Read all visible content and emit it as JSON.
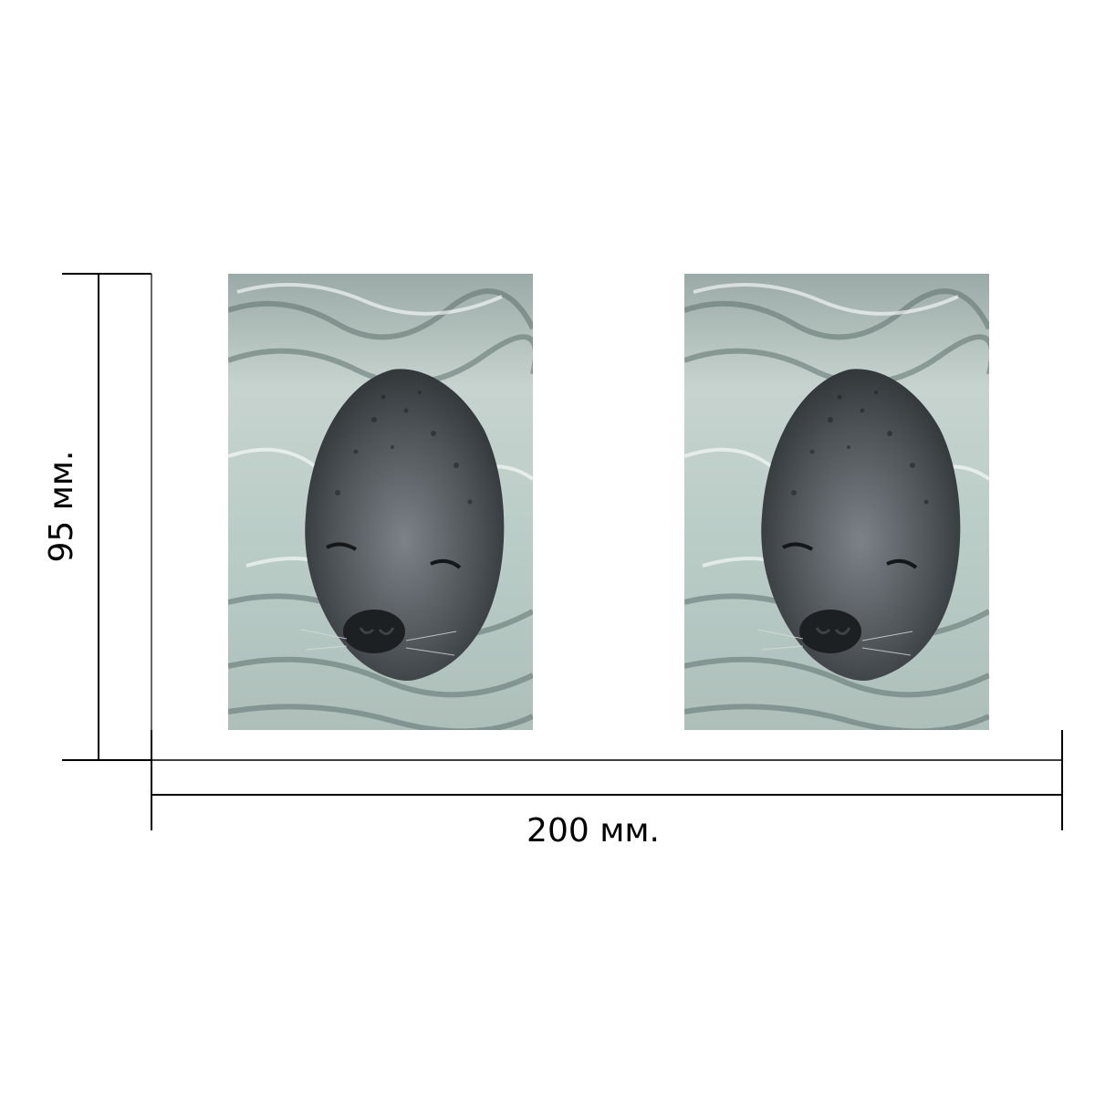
{
  "dimensions": {
    "width_label": "200 мм.",
    "height_label": "95 мм."
  },
  "colors": {
    "line": "#000000",
    "water_light": "#c9d8d4",
    "water_dark": "#6e857f",
    "seal_dark": "#2f3336",
    "seal_mid": "#6b7176"
  },
  "photos": [
    {
      "subject": "seal-head-in-water"
    },
    {
      "subject": "seal-head-in-water"
    }
  ]
}
